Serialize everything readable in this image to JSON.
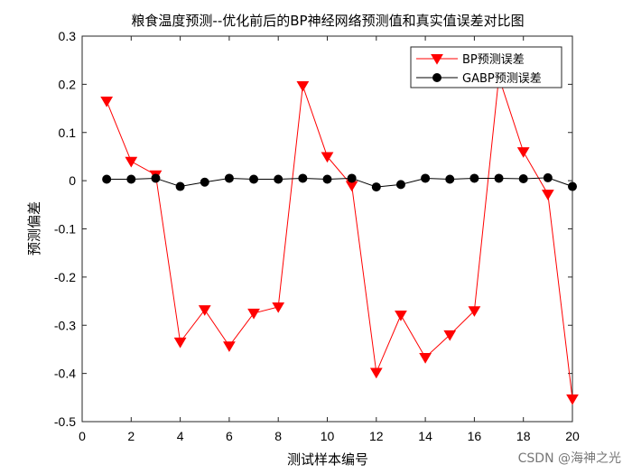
{
  "chart_data": {
    "type": "line",
    "title": "粮食温度预测--优化前后的BP神经网络预测值和真实值误差对比图",
    "xlabel": "测试样本编号",
    "ylabel": "预测偏差",
    "xlim": [
      0,
      20
    ],
    "ylim": [
      -0.5,
      0.3
    ],
    "xticks": [
      0,
      2,
      4,
      6,
      8,
      10,
      12,
      14,
      16,
      18,
      20
    ],
    "yticks": [
      -0.5,
      -0.4,
      -0.3,
      -0.2,
      -0.1,
      0,
      0.1,
      0.2,
      0.3
    ],
    "grid": false,
    "legend_position": "top-right",
    "x": [
      1,
      2,
      3,
      4,
      5,
      6,
      7,
      8,
      9,
      10,
      11,
      12,
      13,
      14,
      15,
      16,
      17,
      18,
      19,
      20
    ],
    "series": [
      {
        "name": "BP预测误差",
        "color": "#ff0000",
        "marker": "triangle-down",
        "values": [
          0.165,
          0.04,
          0.012,
          -0.335,
          -0.268,
          -0.343,
          -0.275,
          -0.262,
          0.197,
          0.05,
          -0.01,
          -0.398,
          -0.279,
          -0.367,
          -0.32,
          -0.27,
          0.215,
          0.06,
          -0.028,
          -0.453
        ]
      },
      {
        "name": "GABP预测误差",
        "color": "#000000",
        "marker": "circle",
        "values": [
          0.003,
          0.003,
          0.005,
          -0.012,
          -0.003,
          0.005,
          0.003,
          0.003,
          0.005,
          0.003,
          0.005,
          -0.013,
          -0.008,
          0.005,
          0.003,
          0.005,
          0.005,
          0.004,
          0.006,
          -0.012
        ]
      }
    ]
  },
  "watermark": "CSDN @海神之光"
}
